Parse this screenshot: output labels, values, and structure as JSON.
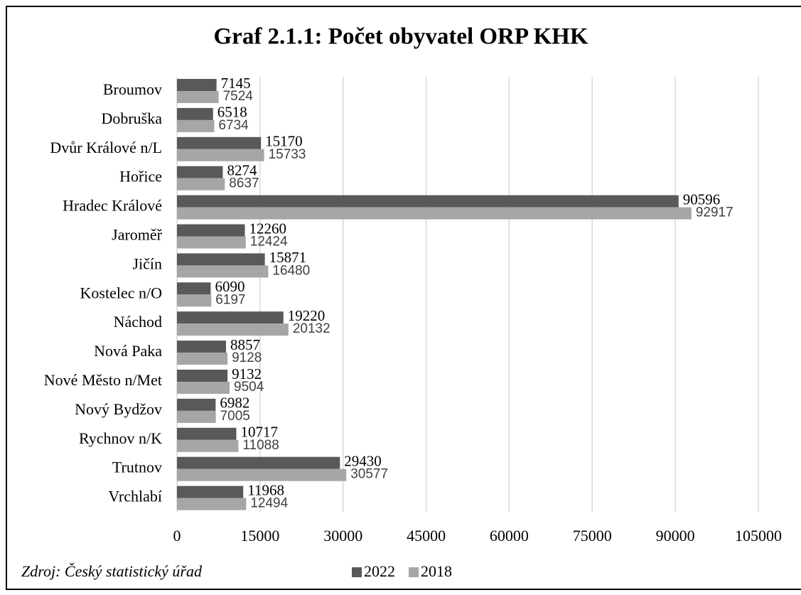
{
  "chart_data": {
    "type": "bar",
    "orientation": "horizontal",
    "title": "Graf 2.1.1: Počet obyvatel ORP KHK",
    "categories": [
      "Broumov",
      "Dobruška",
      "Dvůr Králové n/L",
      "Hořice",
      "Hradec Králové",
      "Jaroměř",
      "Jičín",
      "Kostelec n/O",
      "Náchod",
      "Nová Paka",
      "Nové Město n/Met",
      "Nový Bydžov",
      "Rychnov n/K",
      "Trutnov",
      "Vrchlabí"
    ],
    "series": [
      {
        "name": "2022",
        "color": "#595959",
        "values": [
          7145,
          6518,
          15170,
          8274,
          90596,
          12260,
          15871,
          6090,
          19220,
          8857,
          9132,
          6982,
          10717,
          29430,
          11968
        ]
      },
      {
        "name": "2018",
        "color": "#a6a6a6",
        "values": [
          7524,
          6734,
          15733,
          8637,
          92917,
          12424,
          16480,
          6197,
          20132,
          9128,
          9504,
          7005,
          11088,
          30577,
          12494
        ]
      }
    ],
    "xlim": [
      0,
      105000
    ],
    "xticks": [
      0,
      15000,
      30000,
      45000,
      60000,
      75000,
      90000,
      105000
    ],
    "grid": true,
    "legend": "bottom",
    "source": "Zdroj: Český statistický úřad"
  }
}
